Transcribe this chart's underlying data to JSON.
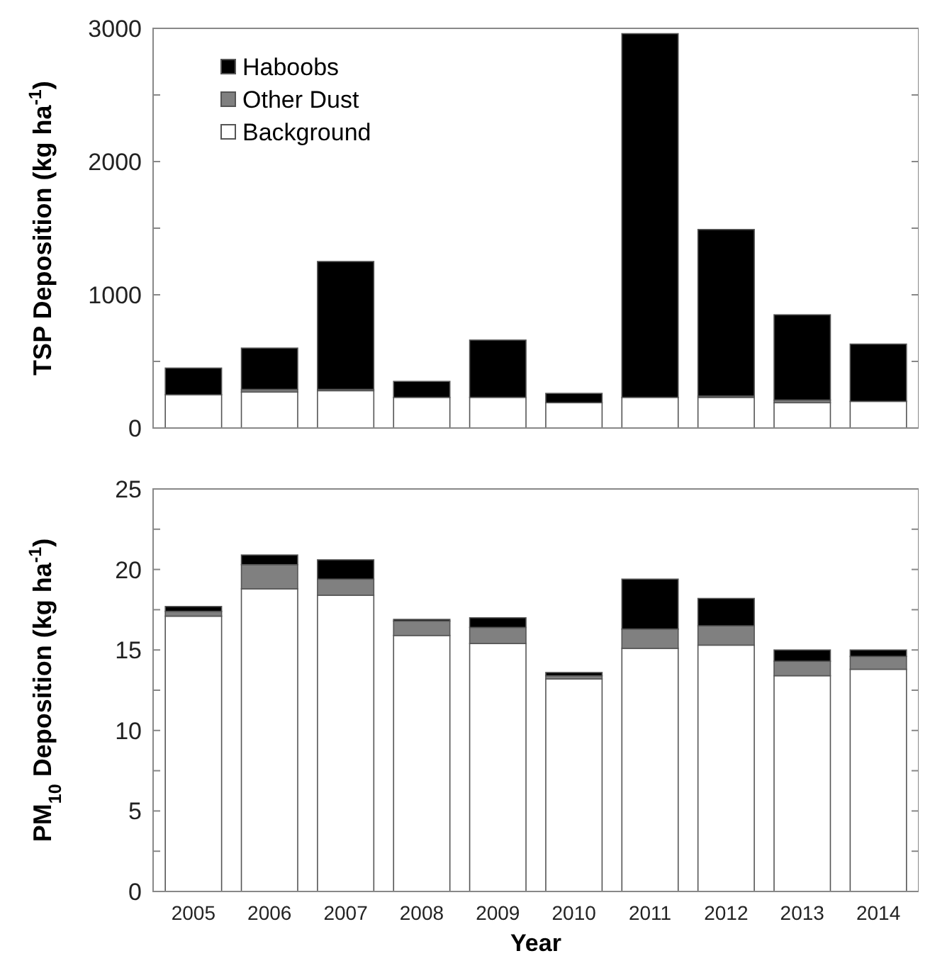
{
  "chart_data": [
    {
      "type": "bar",
      "stacked": true,
      "ylabel": "TSP Deposition (kg ha$^{-1}$)",
      "categories": [
        "2005",
        "2006",
        "2007",
        "2008",
        "2009",
        "2010",
        "2011",
        "2012",
        "2013",
        "2014"
      ],
      "series": [
        {
          "name": "Background",
          "color": "#ffffff",
          "values": [
            250,
            270,
            280,
            230,
            230,
            190,
            230,
            230,
            190,
            200
          ]
        },
        {
          "name": "Other Dust",
          "color": "#808080",
          "values": [
            null,
            20,
            10,
            null,
            null,
            null,
            null,
            10,
            20,
            null
          ]
        },
        {
          "name": "Haboobs",
          "color": "#000000",
          "values": [
            200,
            310,
            960,
            120,
            430,
            70,
            2730,
            1250,
            640,
            430
          ]
        }
      ],
      "ylim": [
        0,
        3000
      ],
      "yticks": [
        0,
        {
          "value": 500,
          "label": null
        },
        1000,
        {
          "value": 1500,
          "label": null
        },
        2000,
        {
          "value": 2500,
          "label": null
        },
        3000
      ],
      "grid": false,
      "legend": "top left",
      "tick_labels": "y"
    },
    {
      "type": "bar",
      "stacked": true,
      "ylabel": "PM$_{10}$ Deposition (kg ha$^{-1}$)",
      "xlabel": "Year",
      "categories": [
        "2005",
        "2006",
        "2007",
        "2008",
        "2009",
        "2010",
        "2011",
        "2012",
        "2013",
        "2014"
      ],
      "series": [
        {
          "color": "#ffffff",
          "values": [
            17.1,
            18.8,
            18.4,
            15.9,
            15.4,
            13.2,
            15.1,
            15.3,
            13.4,
            13.8
          ]
        },
        {
          "color": "#808080",
          "values": [
            0.3,
            1.5,
            1.0,
            0.9,
            1.0,
            0.2,
            1.2,
            1.2,
            0.9,
            0.8
          ]
        },
        {
          "color": "#000000",
          "values": [
            0.3,
            0.6,
            1.2,
            0.1,
            0.6,
            0.2,
            3.1,
            1.7,
            0.7,
            0.4
          ]
        }
      ],
      "ylim": [
        0,
        25
      ],
      "yticks": [
        0,
        {
          "value": 2.5,
          "label": null
        },
        5,
        {
          "value": 7.5,
          "label": null
        },
        10,
        {
          "value": 12.5,
          "label": null
        },
        15,
        {
          "value": 17.5,
          "label": null
        },
        20,
        {
          "value": 22.5,
          "label": null
        },
        25
      ],
      "grid": false,
      "legend": false
    }
  ]
}
